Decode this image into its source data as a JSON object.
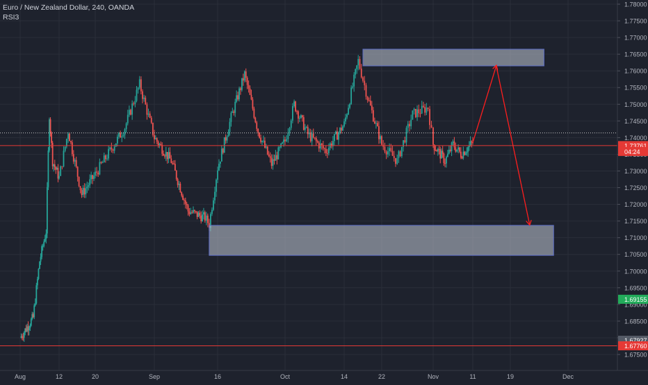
{
  "header": {
    "symbol": "Euro / New Zealand Dollar, 240, OANDA",
    "indicator": "RSI3"
  },
  "colors": {
    "background": "#1e222d",
    "grid": "#2a2e39",
    "up": "#26a69a",
    "down": "#ef5350",
    "zone_fill": "#aeb4c2",
    "zone_border": "#5b6cc8",
    "arrow": "#ff1e1e",
    "price_line": "#e53935",
    "crosshair": "#c8c8c8",
    "axis_text": "#b2b5be"
  },
  "chart_data": {
    "type": "candlestick",
    "title": "Euro / New Zealand Dollar, 240, OANDA",
    "xlabel": "",
    "ylabel": "",
    "x_tick_labels": [
      "Aug",
      "12",
      "20",
      "Sep",
      "16",
      "Oct",
      "14",
      "22",
      "Nov",
      "11",
      "19",
      "Dec"
    ],
    "y_tick_labels": [
      "1.78000",
      "1.77500",
      "1.77000",
      "1.76500",
      "1.76000",
      "1.75500",
      "1.75000",
      "1.74500",
      "1.74000",
      "1.73500",
      "1.73000",
      "1.72500",
      "1.72000",
      "1.71500",
      "1.71000",
      "1.70500",
      "1.70000",
      "1.69500",
      "1.69000",
      "1.68500",
      "1.68000",
      "1.67500"
    ],
    "ylim": [
      1.6735,
      1.7812
    ],
    "price_path": [
      {
        "x": "Aug",
        "y": 1.68
      },
      {
        "x": "Aug 4",
        "y": 1.686
      },
      {
        "x": "Aug 6",
        "y": 1.703
      },
      {
        "x": "Aug 8",
        "y": 1.712
      },
      {
        "x": "Aug 9",
        "y": 1.747
      },
      {
        "x": "Aug 10",
        "y": 1.733
      },
      {
        "x": "12",
        "y": 1.728
      },
      {
        "x": "Aug 14",
        "y": 1.742
      },
      {
        "x": "Aug 17",
        "y": 1.723
      },
      {
        "x": "20",
        "y": 1.729
      },
      {
        "x": "Aug 23",
        "y": 1.736
      },
      {
        "x": "Aug 26",
        "y": 1.743
      },
      {
        "x": "Aug 29",
        "y": 1.756
      },
      {
        "x": "Sep",
        "y": 1.74
      },
      {
        "x": "Sep 5",
        "y": 1.733
      },
      {
        "x": "Sep 9",
        "y": 1.718
      },
      {
        "x": "Sep 13",
        "y": 1.716
      },
      {
        "x": "Sep 14",
        "y": 1.714
      },
      {
        "x": "16",
        "y": 1.731
      },
      {
        "x": "Sep 19",
        "y": 1.746
      },
      {
        "x": "Sep 22",
        "y": 1.759
      },
      {
        "x": "Sep 25",
        "y": 1.742
      },
      {
        "x": "Sep 28",
        "y": 1.732
      },
      {
        "x": "Oct",
        "y": 1.739
      },
      {
        "x": "Oct 3",
        "y": 1.75
      },
      {
        "x": "Oct 6",
        "y": 1.741
      },
      {
        "x": "Oct 10",
        "y": 1.736
      },
      {
        "x": "14",
        "y": 1.744
      },
      {
        "x": "Oct 17",
        "y": 1.763
      },
      {
        "x": "Oct 19",
        "y": 1.752
      },
      {
        "x": "22",
        "y": 1.738
      },
      {
        "x": "Oct 25",
        "y": 1.733
      },
      {
        "x": "Oct 28",
        "y": 1.747
      },
      {
        "x": "Oct 31",
        "y": 1.749
      },
      {
        "x": "Nov",
        "y": 1.738
      },
      {
        "x": "Nov 4",
        "y": 1.733
      },
      {
        "x": "Nov 6",
        "y": 1.738
      },
      {
        "x": "Nov 8",
        "y": 1.735
      },
      {
        "x": "11",
        "y": 1.7385
      }
    ],
    "zones": [
      {
        "name": "supply",
        "top": 1.7665,
        "bottom": 1.7615,
        "from": "Oct 18",
        "to": "Nov 26"
      },
      {
        "name": "demand",
        "top": 1.7137,
        "bottom": 1.7047,
        "from": "Sep 14",
        "to": "Nov 28"
      }
    ],
    "projection": [
      {
        "x": "11",
        "y": 1.7385
      },
      {
        "x": "Nov 16",
        "y": 1.7615
      },
      {
        "x": "Nov 23",
        "y": 1.714
      }
    ],
    "price_labels": [
      {
        "label": "1.73761",
        "value": 1.73761,
        "color": "#e53935",
        "line": true
      },
      {
        "label": "04:24",
        "value": 1.73585,
        "color": "#e53935",
        "line": false
      },
      {
        "label": "1.69155",
        "value": 1.69155,
        "color": "#22ab5a",
        "line": false
      },
      {
        "label": "1.67927",
        "value": 1.67927,
        "color": "#545a66",
        "line": false
      },
      {
        "label": "1.67760",
        "value": 1.6776,
        "color": "#e53935",
        "line": true
      }
    ],
    "crosshair_value": 1.7414,
    "grid": true
  }
}
